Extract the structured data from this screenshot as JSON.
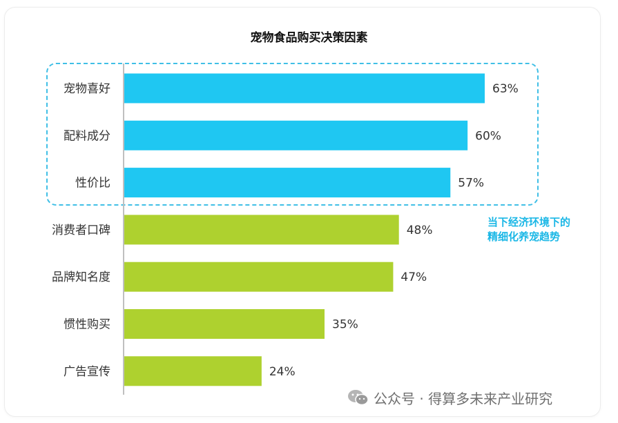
{
  "chart_data": {
    "type": "bar",
    "orientation": "horizontal",
    "title": "宠物食品购买决策因素",
    "categories": [
      "宠物喜好",
      "配料成分",
      "性价比",
      "消费者口碑",
      "品牌知名度",
      "惯性购买",
      "广告宣传"
    ],
    "values": [
      63,
      60,
      57,
      48,
      47,
      35,
      24
    ],
    "value_labels": [
      "63%",
      "60%",
      "57%",
      "48%",
      "47%",
      "35%",
      "24%"
    ],
    "unit": "%",
    "colors": [
      "#1fc7f2",
      "#1fc7f2",
      "#1fc7f2",
      "#aed12f",
      "#aed12f",
      "#aed12f",
      "#aed12f"
    ],
    "xlim": [
      0,
      100
    ],
    "grid": false,
    "highlight": {
      "categories": [
        "宠物喜好",
        "配料成分",
        "性价比"
      ],
      "annotation": [
        "当下经济环境下的",
        "精细化养宠趋势"
      ],
      "color": "#1ab7e6"
    }
  },
  "watermark": {
    "icon": "wechat-icon",
    "text": "公众号 · 得算多未来产业研究"
  }
}
